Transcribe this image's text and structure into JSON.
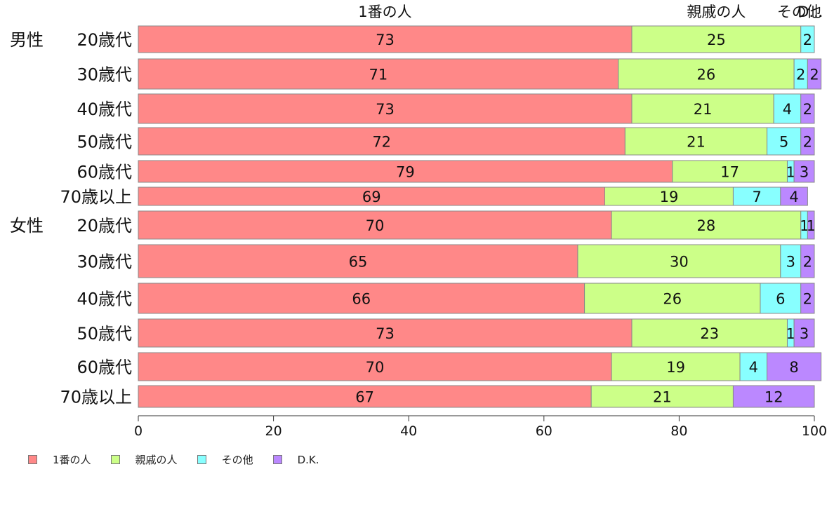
{
  "chart_data": {
    "type": "bar",
    "orientation": "horizontal",
    "stacked": true,
    "title": "",
    "xlabel": "",
    "ylabel": "",
    "xlim": [
      0,
      100
    ],
    "x_ticks": [
      "0",
      "20",
      "40",
      "60",
      "80",
      "100"
    ],
    "grid": false,
    "legend_position": "bottom-left",
    "column_headers": [
      "1番の人",
      "親戚の人",
      "その他",
      "D.K."
    ],
    "groups": [
      "男性",
      "女性"
    ],
    "categories": [
      "20歳代",
      "30歳代",
      "40歳代",
      "50歳代",
      "60歳代",
      "70歳以上",
      "20歳代",
      "30歳代",
      "40歳代",
      "50歳代",
      "60歳代",
      "70歳以上"
    ],
    "category_group": [
      0,
      0,
      0,
      0,
      0,
      0,
      1,
      1,
      1,
      1,
      1,
      1
    ],
    "series": [
      {
        "name": "1番の人",
        "color": "#ff8888",
        "values": [
          73,
          71,
          73,
          72,
          79,
          69,
          70,
          65,
          66,
          73,
          70,
          67
        ]
      },
      {
        "name": "親戚の人",
        "color": "#ccff88",
        "values": [
          25,
          26,
          21,
          21,
          17,
          19,
          28,
          30,
          26,
          23,
          19,
          21
        ]
      },
      {
        "name": "その他",
        "color": "#88ffff",
        "values": [
          2,
          2,
          4,
          5,
          1,
          7,
          1,
          3,
          6,
          1,
          4,
          0
        ]
      },
      {
        "name": "D.K.",
        "color": "#bb88ff",
        "values": [
          0,
          2,
          2,
          2,
          3,
          4,
          1,
          2,
          2,
          3,
          8,
          12
        ]
      }
    ],
    "truncated_header_label": "D..."
  }
}
